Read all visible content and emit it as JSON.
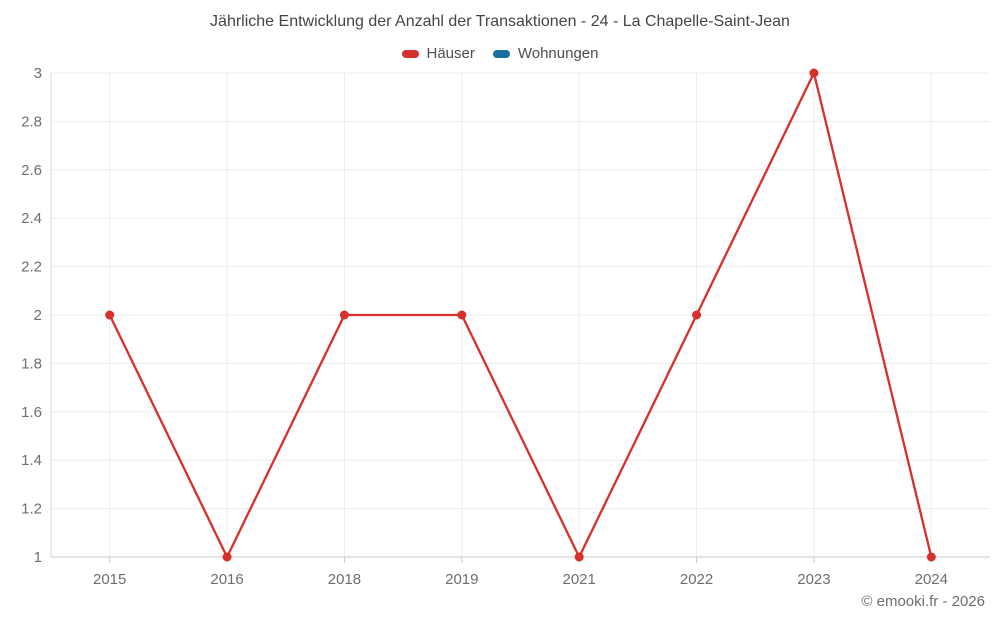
{
  "footer": {
    "copyright": "© emooki.fr - 2026"
  },
  "colors": {
    "haeuser": "#d7302c",
    "wohnungen": "#1b6d9e",
    "grid": "#ececec",
    "axis": "#c9c9c9",
    "y_axis_line": "#d9d9d9",
    "tick_label": "#6e6e6e",
    "title_text": "#454545",
    "legend_text": "#4e4e4e"
  },
  "chart_data": {
    "type": "line",
    "title": "Jährliche Entwicklung der Anzahl der Transaktionen - 24 - La Chapelle-Saint-Jean",
    "categories": [
      "2015",
      "2016",
      "2018",
      "2019",
      "2021",
      "2022",
      "2023",
      "2024"
    ],
    "series": [
      {
        "name": "Häuser",
        "color": "#d7302c",
        "values": [
          2,
          1,
          2,
          2,
          1,
          2,
          3,
          1
        ]
      },
      {
        "name": "Wohnungen",
        "color": "#1b6d9e",
        "values": []
      }
    ],
    "xlabel": "",
    "ylabel": "",
    "ylim": [
      1,
      3
    ],
    "ytick_step": 0.2,
    "ytick_labels": [
      "1",
      "1.2",
      "1.4",
      "1.6",
      "1.8",
      "2",
      "2.2",
      "2.4",
      "2.6",
      "2.8",
      "3"
    ],
    "grid": true,
    "legend_position": "top"
  }
}
